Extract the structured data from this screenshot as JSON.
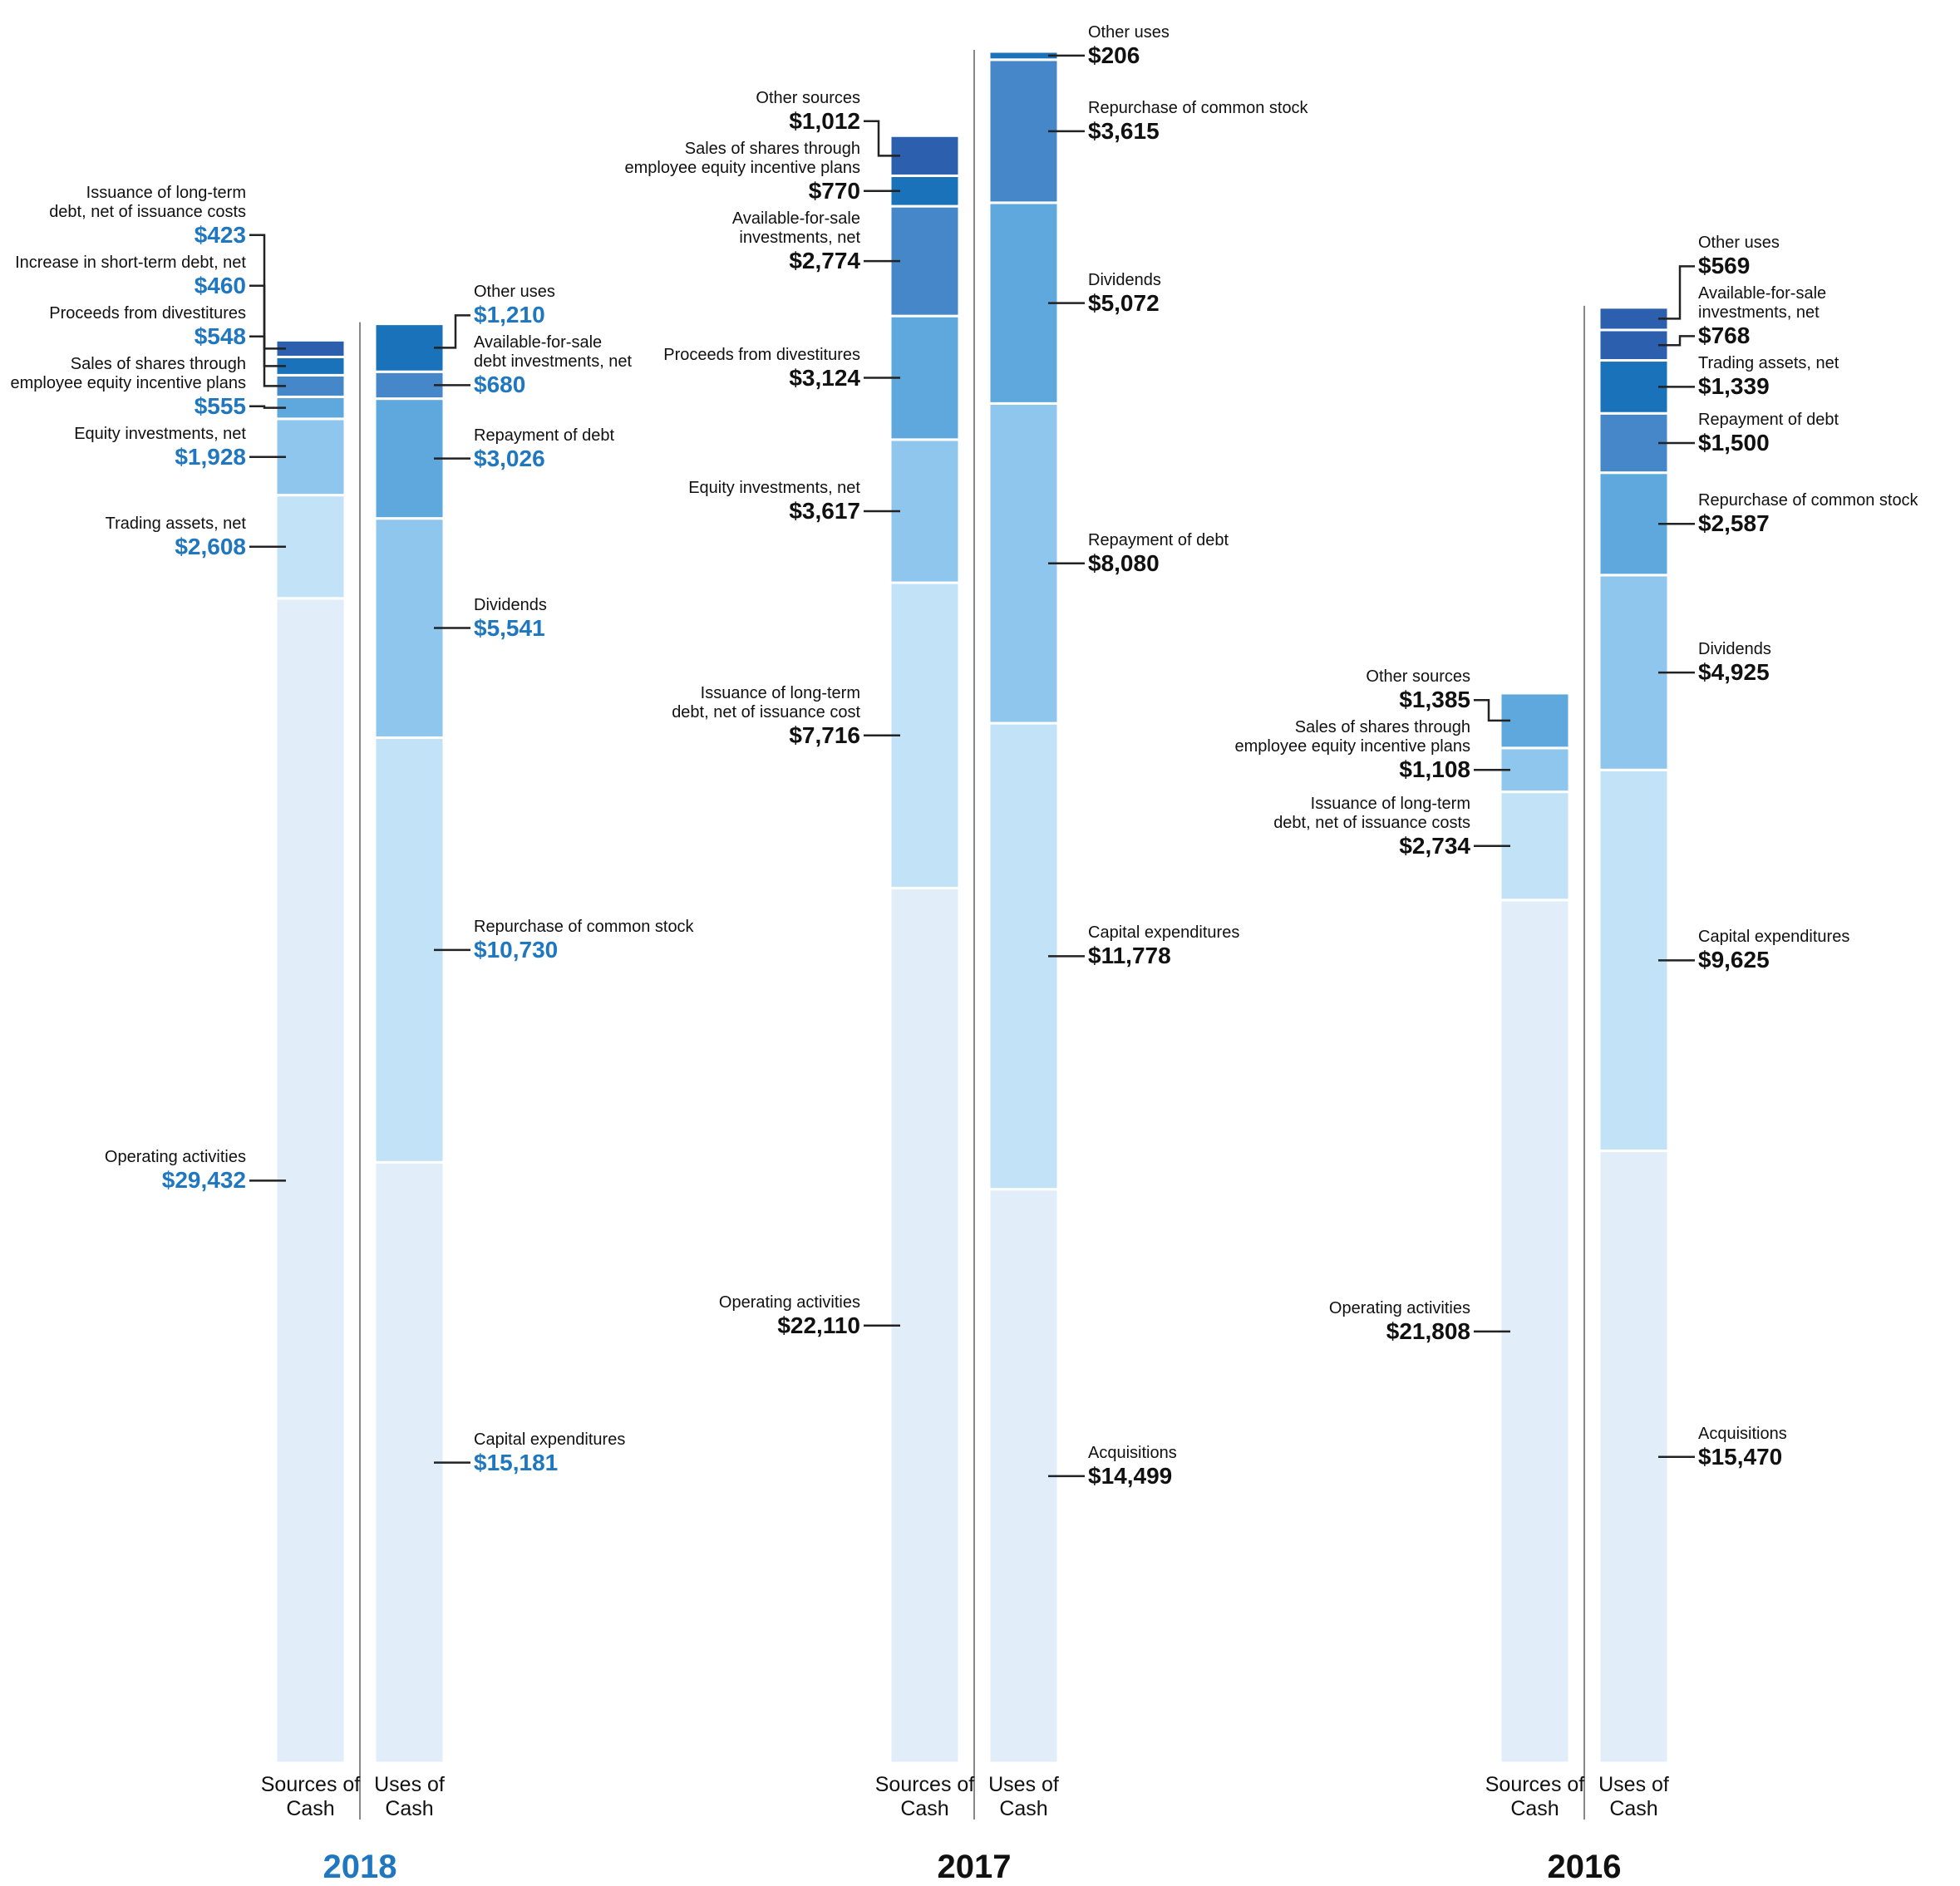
{
  "chart_data": [
    {
      "type": "stacked_bar",
      "title": "2018",
      "color": "#1f77c0",
      "columns": [
        {
          "name": "Sources of Cash",
          "labels": [
            "Operating activities",
            "Trading assets, net",
            "Equity investments, net",
            "Sales of shares through employee equity incentive plans",
            "Proceeds from divestitures",
            "Increase in short-term debt, net",
            "Issuance of long-term debt, net of issuance costs"
          ],
          "values": [
            29432,
            2608,
            1928,
            555,
            548,
            460,
            423
          ],
          "value_labels": [
            "$29,432",
            "$2,608",
            "$1,928",
            "$555",
            "$548",
            "$460",
            "$423"
          ],
          "colors": [
            "#e1eef9",
            "#c2e3f7",
            "#8fc6ee",
            "#5ea8dd",
            "#4587c9",
            "#1a72bb",
            "#2c5fad"
          ]
        },
        {
          "name": "Uses of Cash",
          "labels": [
            "Capital expenditures",
            "Repurchase of common stock",
            "Dividends",
            "Repayment of debt",
            "Available-for-sale debt investments, net",
            "Other uses"
          ],
          "values": [
            15181,
            10730,
            5541,
            3026,
            680,
            1210
          ],
          "value_labels": [
            "$15,181",
            "$10,730",
            "$5,541",
            "$3,026",
            "$680",
            "$1,210"
          ],
          "colors": [
            "#e1eef9",
            "#c2e3f7",
            "#8fc6ee",
            "#5ea8dd",
            "#4587c9",
            "#1a72bb"
          ]
        }
      ]
    },
    {
      "type": "stacked_bar",
      "title": "2017",
      "color": "#111111",
      "columns": [
        {
          "name": "Sources of Cash",
          "labels": [
            "Operating activities",
            "Issuance of long-term debt, net of issuance cost",
            "Equity investments, net",
            "Proceeds from divestitures",
            "Available-for-sale investments, net",
            "Sales of shares through employee equity incentive plans",
            "Other sources"
          ],
          "values": [
            22110,
            7716,
            3617,
            3124,
            2774,
            770,
            1012
          ],
          "value_labels": [
            "$22,110",
            "$7,716",
            "$3,617",
            "$3,124",
            "$2,774",
            "$770",
            "$1,012"
          ],
          "colors": [
            "#e1eef9",
            "#c2e3f7",
            "#8fc6ee",
            "#5ea8dd",
            "#4587c9",
            "#1a72bb",
            "#2c5fad"
          ]
        },
        {
          "name": "Uses of Cash",
          "labels": [
            "Acquisitions",
            "Capital expenditures",
            "Repayment of debt",
            "Dividends",
            "Repurchase of common stock",
            "Other uses"
          ],
          "values": [
            14499,
            11778,
            8080,
            5072,
            3615,
            206
          ],
          "value_labels": [
            "$14,499",
            "$11,778",
            "$8,080",
            "$5,072",
            "$3,615",
            "$206"
          ],
          "colors": [
            "#e1eef9",
            "#c2e3f7",
            "#8fc6ee",
            "#5ea8dd",
            "#4587c9",
            "#1a72bb"
          ]
        }
      ]
    },
    {
      "type": "stacked_bar",
      "title": "2016",
      "color": "#111111",
      "columns": [
        {
          "name": "Sources of Cash",
          "labels": [
            "Operating activities",
            "Issuance of long-term debt, net of issuance costs",
            "Sales of shares through employee equity incentive plans",
            "Other sources"
          ],
          "values": [
            21808,
            2734,
            1108,
            1385
          ],
          "value_labels": [
            "$21,808",
            "$2,734",
            "$1,108",
            "$1,385"
          ],
          "colors": [
            "#e1eef9",
            "#c2e3f7",
            "#8fc6ee",
            "#5ea8dd"
          ]
        },
        {
          "name": "Uses of Cash",
          "labels": [
            "Acquisitions",
            "Capital expenditures",
            "Dividends",
            "Repurchase of common stock",
            "Repayment of debt",
            "Trading assets, net",
            "Available-for-sale investments, net",
            "Other uses"
          ],
          "values": [
            15470,
            9625,
            4925,
            2587,
            1500,
            1339,
            768,
            569
          ],
          "value_labels": [
            "$15,470",
            "$9,625",
            "$4,925",
            "$2,587",
            "$1,500",
            "$1,339",
            "$768",
            "$569"
          ],
          "colors": [
            "#e1eef9",
            "#c2e3f7",
            "#8fc6ee",
            "#5ea8dd",
            "#4587c9",
            "#1a72bb",
            "#2c5fad",
            "#2c5fad"
          ]
        }
      ]
    }
  ]
}
